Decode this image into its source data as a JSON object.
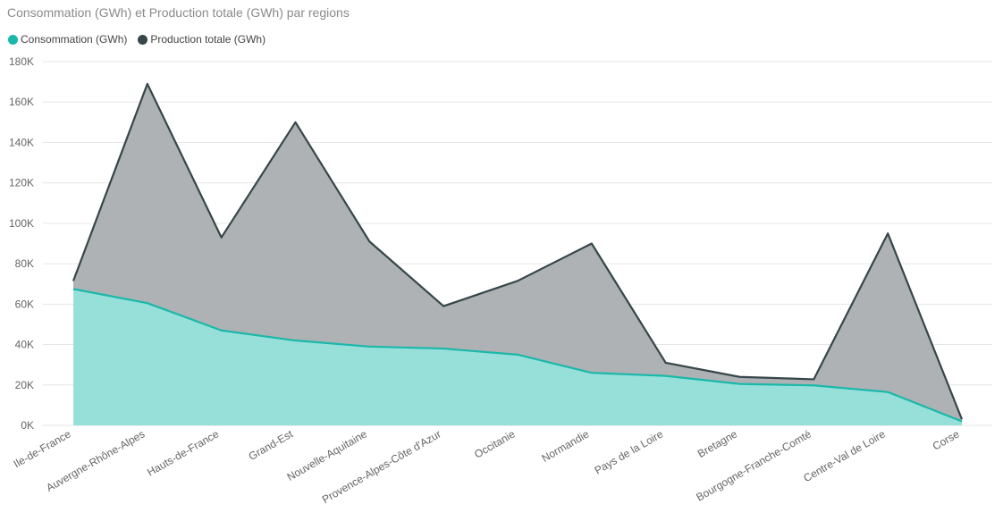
{
  "chart_data": {
    "type": "area",
    "title": "Consommation (GWh) et Production totale (GWh) par regions",
    "categories": [
      "Ile-de-France",
      "Auvergne-Rhône-Alpes",
      "Hauts-de-France",
      "Grand-Est",
      "Nouvelle-Aquitaine",
      "Provence-Alpes-Côte d'Azur",
      "Occitanie",
      "Normandie",
      "Pays de la Loire",
      "Bretagne",
      "Bourgogne-Franche-Comté",
      "Centre-Val de Loire",
      "Corse"
    ],
    "series": [
      {
        "name": "Consommation (GWh)",
        "color": "#1ab8aa",
        "fill": "#97e0d9",
        "values": [
          67500,
          60500,
          47000,
          42000,
          39000,
          38000,
          35000,
          26000,
          24500,
          20500,
          19800,
          16500,
          2000
        ]
      },
      {
        "name": "Production totale (GWh)",
        "color": "#374649",
        "fill": "#aeb2b4",
        "values": [
          71500,
          169000,
          93000,
          150000,
          91000,
          59000,
          71500,
          90000,
          31000,
          24000,
          22800,
          95000,
          3000
        ]
      }
    ],
    "yticks": [
      "0K",
      "20K",
      "40K",
      "60K",
      "80K",
      "100K",
      "120K",
      "140K",
      "160K",
      "180K"
    ],
    "ylim": [
      0,
      180000
    ],
    "grid": true,
    "legend_position": "top-left"
  }
}
